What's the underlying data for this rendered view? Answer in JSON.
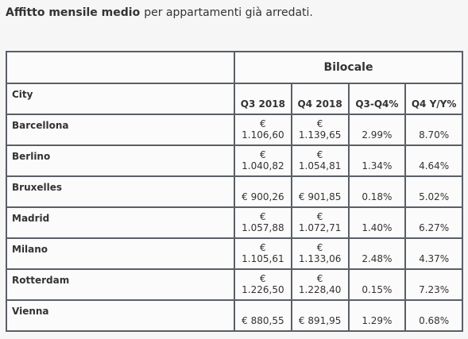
{
  "caption": {
    "bold": "Affitto mensile medio",
    "text": "per appartamenti già arredati."
  },
  "table": {
    "group_header": "Bilocale",
    "columns": [
      "City",
      "Q3 2018",
      "Q4 2018",
      "Q3-Q4%",
      "Q4 Y/Y%"
    ],
    "rows": [
      [
        "Barcellona",
        "€ 1.106,60",
        "€ 1.139,65",
        "2.99%",
        "8.70%"
      ],
      [
        "Berlino",
        "€ 1.040,82",
        "€ 1.054,81",
        "1.34%",
        "4.64%"
      ],
      [
        "Bruxelles",
        "€ 900,26",
        "€ 901,85",
        "0.18%",
        "5.02%"
      ],
      [
        "Madrid",
        "€ 1.057,88",
        "€ 1.072,71",
        "1.40%",
        "6.27%"
      ],
      [
        "Milano",
        "€ 1.105,61",
        "€ 1.133,06",
        "2.48%",
        "4.37%"
      ],
      [
        "Rotterdam",
        "€ 1.226,50",
        "€ 1.228,40",
        "0.15%",
        "7.23%"
      ],
      [
        "Vienna",
        "€ 880,55",
        "€ 891,95",
        "1.29%",
        "0.68%"
      ]
    ]
  }
}
